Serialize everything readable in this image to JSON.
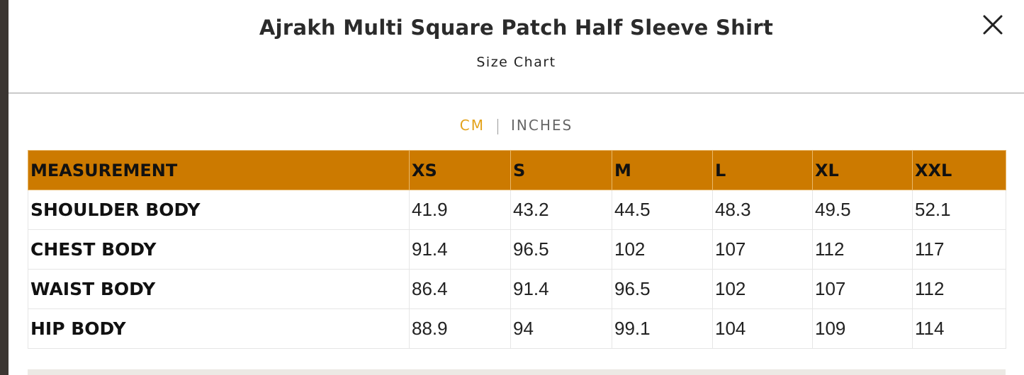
{
  "header": {
    "title": "Ajrakh Multi Square Patch Half Sleeve Shirt",
    "subtitle": "Size Chart"
  },
  "unit_toggle": {
    "options": [
      "CM",
      "INCHES"
    ],
    "active": 0
  },
  "table": {
    "columns": [
      "MEASUREMENT",
      "XS",
      "S",
      "M",
      "L",
      "XL",
      "XXL"
    ],
    "rows": [
      [
        "SHOULDER BODY",
        "41.9",
        "43.2",
        "44.5",
        "48.3",
        "49.5",
        "52.1"
      ],
      [
        "CHEST BODY",
        "91.4",
        "96.5",
        "102",
        "107",
        "112",
        "117"
      ],
      [
        "WAIST BODY",
        "86.4",
        "91.4",
        "96.5",
        "102",
        "107",
        "112"
      ],
      [
        "HIP BODY",
        "88.9",
        "94",
        "99.1",
        "104",
        "109",
        "114"
      ]
    ]
  }
}
